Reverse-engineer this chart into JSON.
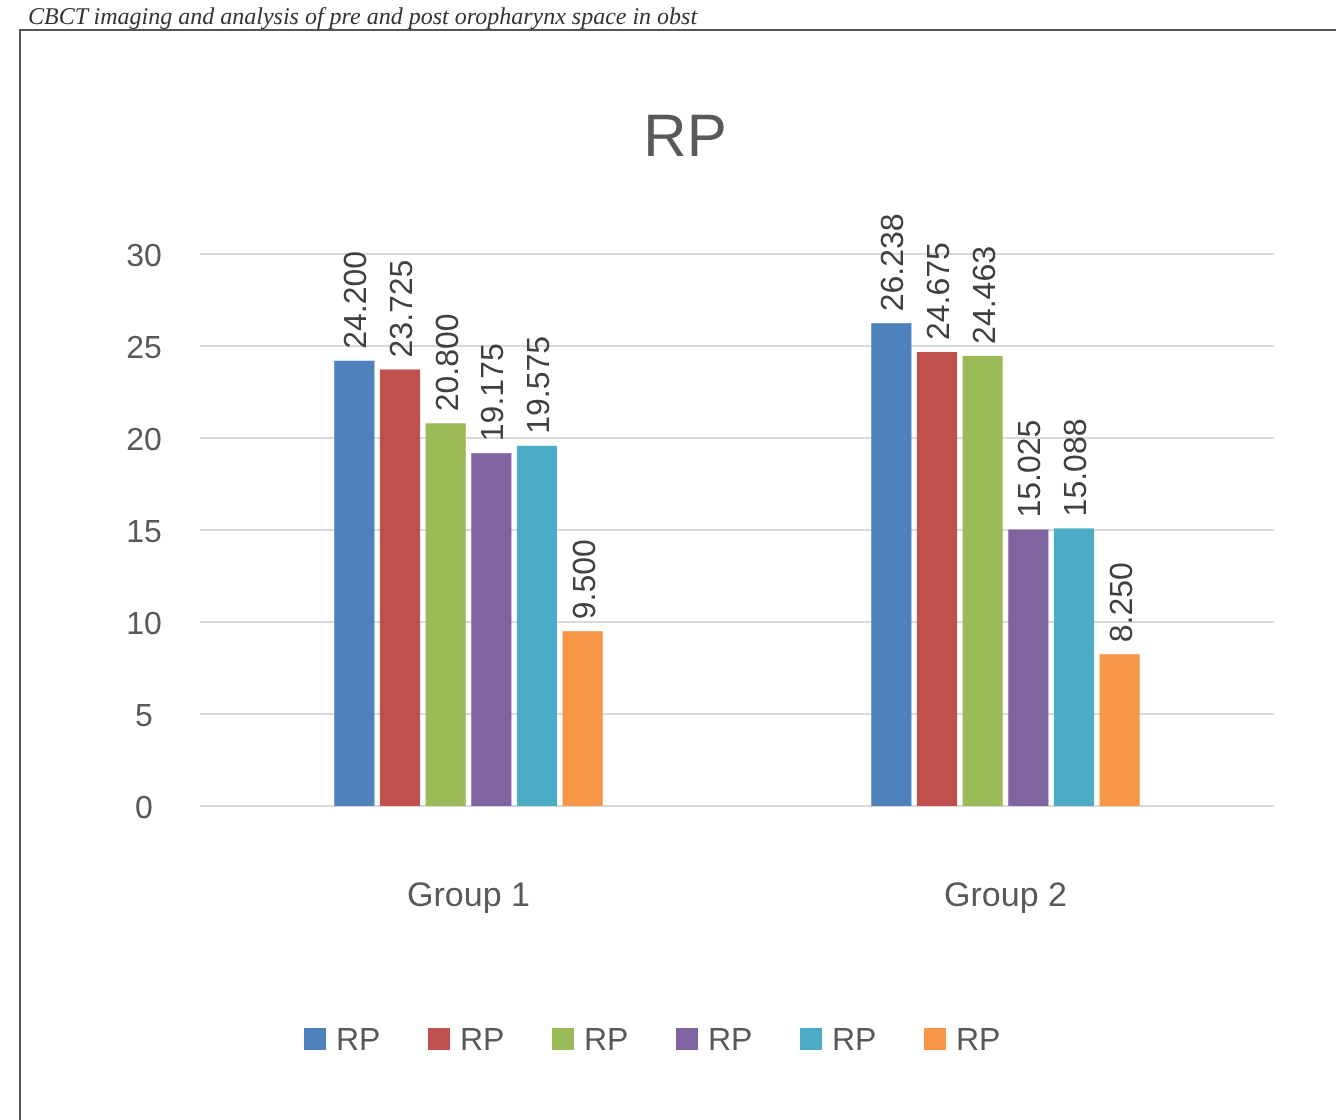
{
  "chart_data": {
    "type": "bar",
    "title": "RP",
    "annotations": [
      "CBCT imaging and analysis of pre and post oropharynx space in obst"
    ],
    "categories": [
      "Group 1",
      "Group 2"
    ],
    "series": [
      {
        "name": "RP",
        "color": "#4f81bd",
        "values": [
          24.2,
          26.238
        ],
        "value_labels": [
          "24.200",
          "26.238"
        ]
      },
      {
        "name": "RP",
        "color": "#c0504d",
        "values": [
          23.725,
          24.675
        ],
        "value_labels": [
          "23.725",
          "24.675"
        ]
      },
      {
        "name": "RP",
        "color": "#9bbb59",
        "values": [
          20.8,
          24.463
        ],
        "value_labels": [
          "20.800",
          "24.463"
        ]
      },
      {
        "name": "RP",
        "color": "#8064a2",
        "values": [
          19.175,
          15.025
        ],
        "value_labels": [
          "19.175",
          "15.025"
        ]
      },
      {
        "name": "RP",
        "color": "#4bacc6",
        "values": [
          19.575,
          15.088
        ],
        "value_labels": [
          "19.575",
          "15.088"
        ]
      },
      {
        "name": "RP",
        "color": "#f79646",
        "values": [
          9.5,
          8.25
        ],
        "value_labels": [
          "9.500",
          "8.250"
        ]
      }
    ],
    "ylim": [
      0,
      30
    ],
    "yticks": [
      0,
      5,
      10,
      15,
      20,
      25,
      30
    ],
    "grid": "y",
    "legend": "bottom"
  }
}
